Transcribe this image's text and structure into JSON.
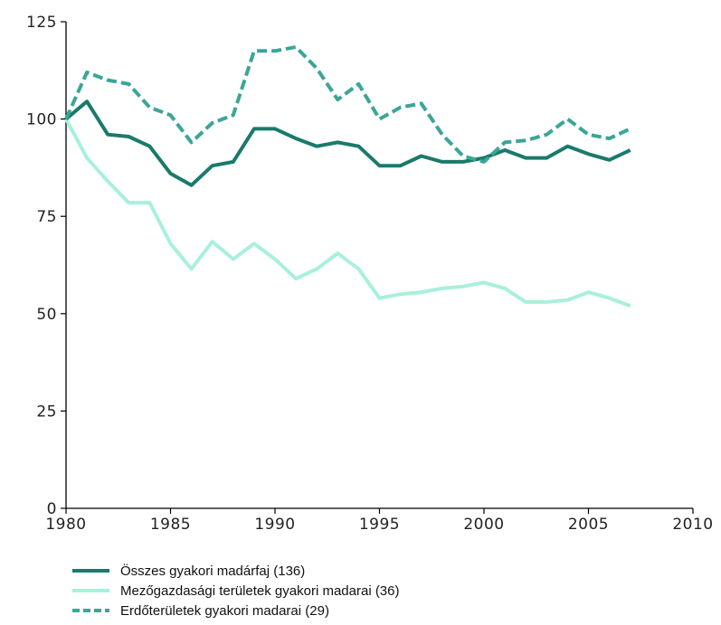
{
  "chart_data": {
    "type": "line",
    "title": "",
    "xlabel": "",
    "ylabel": "",
    "xlim": [
      1980,
      2010
    ],
    "ylim": [
      0,
      125
    ],
    "x_ticks": [
      1980,
      1985,
      1990,
      1995,
      2000,
      2005,
      2010
    ],
    "y_ticks": [
      0,
      25,
      50,
      75,
      100,
      125
    ],
    "grid": false,
    "legend_position": "bottom",
    "x": [
      1980,
      1981,
      1982,
      1983,
      1984,
      1985,
      1986,
      1987,
      1988,
      1989,
      1990,
      1991,
      1992,
      1993,
      1994,
      1995,
      1996,
      1997,
      1998,
      1999,
      2000,
      2001,
      2002,
      2003,
      2004,
      2005,
      2006,
      2007
    ],
    "series": [
      {
        "name": "Összes gyakori madárfaj (136)",
        "color": "#1a7a6b",
        "style": "solid",
        "values": [
          100,
          104.5,
          96,
          95.5,
          93,
          86,
          83,
          88,
          89,
          97.5,
          97.5,
          95,
          93,
          94,
          93,
          88,
          88,
          90.5,
          89,
          89,
          90,
          92,
          90,
          90,
          93,
          91,
          89.5,
          92
        ]
      },
      {
        "name": "Mezőgazdasági területek gyakori madarai (36)",
        "color": "#a8f0dc",
        "style": "solid",
        "values": [
          100,
          90,
          84,
          78.5,
          78.5,
          68,
          61.5,
          68.5,
          64,
          68,
          64,
          59,
          61.5,
          65.5,
          61.5,
          54,
          55,
          55.5,
          56.5,
          57,
          58,
          56.5,
          53,
          53,
          53.5,
          55.5,
          54,
          52
        ]
      },
      {
        "name": "Erdőterületek gyakori madarai (29)",
        "color": "#3aa697",
        "style": "dashed",
        "values": [
          100,
          112,
          110,
          109,
          103,
          101,
          94,
          99,
          101,
          117.5,
          117.5,
          118.5,
          113,
          105,
          109,
          100,
          103,
          104,
          96,
          90.5,
          89,
          94,
          94.5,
          96,
          100,
          96,
          95,
          97.5
        ]
      }
    ]
  }
}
